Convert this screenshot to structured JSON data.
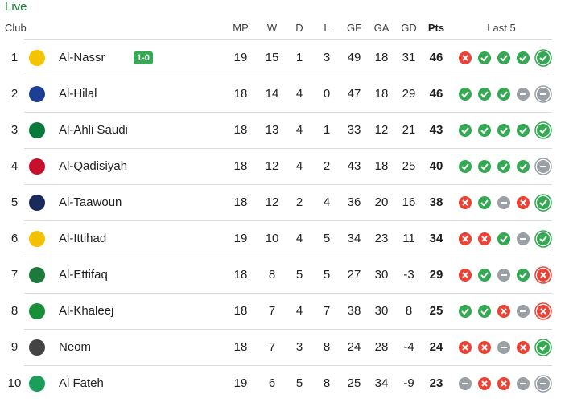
{
  "header": {
    "title": "Live"
  },
  "table": {
    "columns": [
      "Club",
      "MP",
      "W",
      "D",
      "L",
      "GF",
      "GA",
      "GD",
      "Pts",
      "Last 5"
    ],
    "rows": [
      {
        "rank": 1,
        "club": "Al-Nassr",
        "live": "1-0",
        "stats": [
          19,
          15,
          1,
          3,
          49,
          18,
          31,
          46
        ],
        "last5": [
          "L",
          "W",
          "W",
          "W",
          "W"
        ]
      },
      {
        "rank": 2,
        "club": "Al-Hilal",
        "stats": [
          18,
          14,
          4,
          0,
          47,
          18,
          29,
          46
        ],
        "last5": [
          "W",
          "W",
          "W",
          "D",
          "D"
        ]
      },
      {
        "rank": 3,
        "club": "Al-Ahli Saudi",
        "stats": [
          18,
          13,
          4,
          1,
          33,
          12,
          21,
          43
        ],
        "last5": [
          "W",
          "W",
          "W",
          "W",
          "W"
        ]
      },
      {
        "rank": 4,
        "club": "Al-Qadisiyah",
        "stats": [
          18,
          12,
          4,
          2,
          43,
          18,
          25,
          40
        ],
        "last5": [
          "W",
          "W",
          "W",
          "W",
          "D"
        ]
      },
      {
        "rank": 5,
        "club": "Al-Taawoun",
        "stats": [
          18,
          12,
          2,
          4,
          36,
          20,
          16,
          38
        ],
        "last5": [
          "L",
          "W",
          "D",
          "L",
          "W"
        ]
      },
      {
        "rank": 6,
        "club": "Al-Ittihad",
        "stats": [
          19,
          10,
          4,
          5,
          34,
          23,
          11,
          34
        ],
        "last5": [
          "L",
          "L",
          "W",
          "D",
          "W"
        ]
      },
      {
        "rank": 7,
        "club": "Al-Ettifaq",
        "stats": [
          18,
          8,
          5,
          5,
          27,
          30,
          -3,
          29
        ],
        "last5": [
          "L",
          "W",
          "D",
          "W",
          "L"
        ]
      },
      {
        "rank": 8,
        "club": "Al-Khaleej",
        "stats": [
          18,
          7,
          4,
          7,
          38,
          30,
          8,
          25
        ],
        "last5": [
          "W",
          "W",
          "L",
          "D",
          "L"
        ]
      },
      {
        "rank": 9,
        "club": "Neom",
        "stats": [
          18,
          7,
          3,
          8,
          24,
          28,
          -4,
          24
        ],
        "last5": [
          "L",
          "L",
          "D",
          "L",
          "W"
        ]
      },
      {
        "rank": 10,
        "club": "Al Fateh",
        "stats": [
          19,
          6,
          5,
          8,
          25,
          34,
          -9,
          23
        ],
        "last5": [
          "D",
          "L",
          "L",
          "D",
          "D"
        ]
      }
    ]
  }
}
